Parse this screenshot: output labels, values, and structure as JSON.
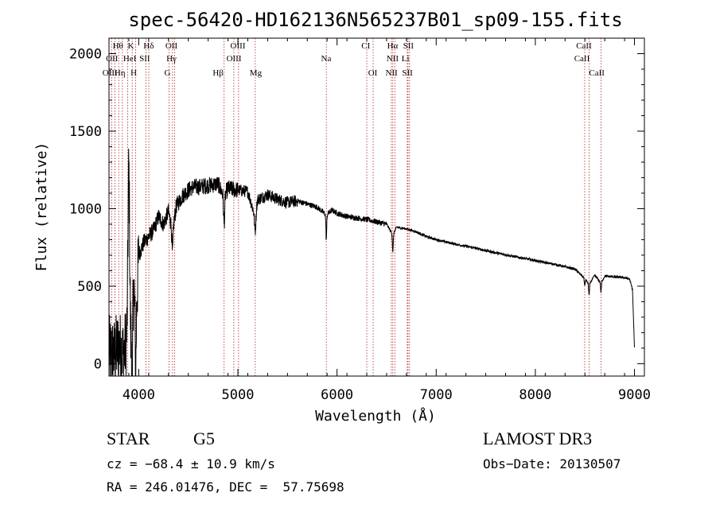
{
  "chart_data": {
    "type": "line",
    "title": "spec-56420-HD162136N565237B01_sp09-155.fits",
    "xlabel": "Wavelength (Å)",
    "ylabel": "Flux (relative)",
    "xlim": [
      3700,
      9100
    ],
    "ylim": [
      -80,
      2100
    ],
    "xticks": [
      4000,
      5000,
      6000,
      7000,
      8000,
      9000
    ],
    "yticks": [
      0,
      500,
      1000,
      1500,
      2000
    ],
    "grid": false,
    "series": [
      {
        "name": "Flux",
        "color": "#000000",
        "anchors": [
          [
            3700,
            80
          ],
          [
            3750,
            60
          ],
          [
            3800,
            120
          ],
          [
            3850,
            50
          ],
          [
            3880,
            180
          ],
          [
            3900,
            520
          ],
          [
            3920,
            130
          ],
          [
            3950,
            500
          ],
          [
            3970,
            250
          ],
          [
            4000,
            700
          ],
          [
            4050,
            780
          ],
          [
            4100,
            820
          ],
          [
            4150,
            860
          ],
          [
            4200,
            950
          ],
          [
            4250,
            900
          ],
          [
            4300,
            980
          ],
          [
            4340,
            860
          ],
          [
            4380,
            1020
          ],
          [
            4450,
            1090
          ],
          [
            4500,
            1120
          ],
          [
            4550,
            1140
          ],
          [
            4600,
            1140
          ],
          [
            4700,
            1150
          ],
          [
            4800,
            1160
          ],
          [
            4860,
            1080
          ],
          [
            4900,
            1130
          ],
          [
            5000,
            1120
          ],
          [
            5100,
            1110
          ],
          [
            5170,
            960
          ],
          [
            5200,
            1060
          ],
          [
            5300,
            1090
          ],
          [
            5400,
            1060
          ],
          [
            5500,
            1040
          ],
          [
            5600,
            1050
          ],
          [
            5700,
            1030
          ],
          [
            5800,
            1010
          ],
          [
            5890,
            960
          ],
          [
            5950,
            990
          ],
          [
            6000,
            970
          ],
          [
            6100,
            950
          ],
          [
            6200,
            940
          ],
          [
            6300,
            930
          ],
          [
            6400,
            915
          ],
          [
            6500,
            900
          ],
          [
            6563,
            830
          ],
          [
            6600,
            880
          ],
          [
            6700,
            870
          ],
          [
            6800,
            850
          ],
          [
            6900,
            820
          ],
          [
            7000,
            800
          ],
          [
            7200,
            770
          ],
          [
            7400,
            745
          ],
          [
            7600,
            715
          ],
          [
            7800,
            690
          ],
          [
            8000,
            665
          ],
          [
            8200,
            640
          ],
          [
            8400,
            610
          ],
          [
            8498,
            550
          ],
          [
            8542,
            510
          ],
          [
            8600,
            570
          ],
          [
            8662,
            520
          ],
          [
            8700,
            565
          ],
          [
            8800,
            560
          ],
          [
            8900,
            555
          ],
          [
            8950,
            545
          ],
          [
            8980,
            480
          ],
          [
            9000,
            100
          ]
        ],
        "features": [
          {
            "at": 3900,
            "depth": -750,
            "width": 8
          },
          {
            "at": 3934,
            "depth": 1100,
            "width": 3
          },
          {
            "at": 3969,
            "depth": 300,
            "width": 5
          },
          {
            "at": 4340,
            "depth": 150,
            "width": 6
          },
          {
            "at": 4861,
            "depth": 180,
            "width": 6
          },
          {
            "at": 5175,
            "depth": 120,
            "width": 7
          },
          {
            "at": 5892,
            "depth": 160,
            "width": 4
          },
          {
            "at": 6563,
            "depth": 110,
            "width": 4
          },
          {
            "at": 8498,
            "depth": 50,
            "width": 4
          },
          {
            "at": 8542,
            "depth": 70,
            "width": 4
          },
          {
            "at": 8662,
            "depth": 60,
            "width": 4
          }
        ],
        "noise": [
          {
            "range": [
              3700,
              4000
            ],
            "amplitude": 240
          },
          {
            "range": [
              4000,
              5000
            ],
            "amplitude": 55
          },
          {
            "range": [
              5000,
              5600
            ],
            "amplitude": 40
          },
          {
            "range": [
              5600,
              6500
            ],
            "amplitude": 18
          },
          {
            "range": [
              6500,
              9000
            ],
            "amplitude": 8
          }
        ],
        "range": [
          3700,
          9000
        ]
      }
    ],
    "line_markers": [
      {
        "label": "Hθ",
        "wavelength": 3798,
        "row": 0,
        "text_wl": 3790
      },
      {
        "label": "K",
        "wavelength": 3934,
        "row": 0,
        "text_wl": 3920
      },
      {
        "label": "Hδ",
        "wavelength": 4102,
        "row": 0,
        "text_wl": 4100
      },
      {
        "label": "OII",
        "wavelength": 4341,
        "row": 0,
        "text_wl": 4330
      },
      {
        "label": "OIII",
        "wavelength": 5007,
        "row": 0,
        "text_wl": 5000
      },
      {
        "label": "CI",
        "wavelength": 6300,
        "row": 0,
        "text_wl": 6290
      },
      {
        "label": "Hα",
        "wavelength": 6563,
        "row": 0,
        "text_wl": 6560
      },
      {
        "label": "SII",
        "wavelength": 6716,
        "row": 0,
        "text_wl": 6720
      },
      {
        "label": "CaII",
        "wavelength": 8498,
        "row": 0,
        "text_wl": 8490
      },
      {
        "label": "OII",
        "wavelength": 3727,
        "row": 1,
        "text_wl": 3730
      },
      {
        "label": "HeI",
        "wavelength": 3889,
        "row": 1,
        "text_wl": 3910
      },
      {
        "label": "SII",
        "wavelength": 4072,
        "row": 1,
        "text_wl": 4060
      },
      {
        "label": "Hγ",
        "wavelength": 4363,
        "row": 1,
        "text_wl": 4330
      },
      {
        "label": "OIII",
        "wavelength": 4959,
        "row": 1,
        "text_wl": 4960
      },
      {
        "label": "Na",
        "wavelength": 5892,
        "row": 1,
        "text_wl": 5890
      },
      {
        "label": "NII",
        "wavelength": 6548,
        "row": 1,
        "text_wl": 6560
      },
      {
        "label": "Li",
        "wavelength": 6708,
        "row": 1,
        "text_wl": 6690
      },
      {
        "label": "CaII",
        "wavelength": 8542,
        "row": 1,
        "text_wl": 8470
      },
      {
        "label": "OIII",
        "wavelength": 3760,
        "row": 2,
        "text_wl": 3710
      },
      {
        "label": "Hη",
        "wavelength": 3835,
        "row": 2,
        "text_wl": 3810
      },
      {
        "label": "H",
        "wavelength": 3969,
        "row": 2,
        "text_wl": 3950
      },
      {
        "label": "G",
        "wavelength": 4305,
        "row": 2,
        "text_wl": 4290
      },
      {
        "label": "Hβ",
        "wavelength": 4861,
        "row": 2,
        "text_wl": 4800
      },
      {
        "label": "Mg",
        "wavelength": 5175,
        "row": 2,
        "text_wl": 5180
      },
      {
        "label": "OI",
        "wavelength": 6364,
        "row": 2,
        "text_wl": 6360
      },
      {
        "label": "NII",
        "wavelength": 6583,
        "row": 2,
        "text_wl": 6550
      },
      {
        "label": "SII",
        "wavelength": 6731,
        "row": 2,
        "text_wl": 6710
      },
      {
        "label": "CaII",
        "wavelength": 8662,
        "row": 2,
        "text_wl": 8620
      }
    ]
  },
  "info": {
    "object_class": "STAR",
    "subclass": "G5",
    "survey": "LAMOST DR3",
    "redshift": "cz = −68.4 ± 10.9 km/s",
    "obs_date": "Obs−Date: 20130507",
    "coords": "RA = 246.01476, DEC =  57.75698"
  },
  "colors": {
    "marker": "#b22222",
    "axis": "#000000",
    "spectrum": "#000000"
  }
}
